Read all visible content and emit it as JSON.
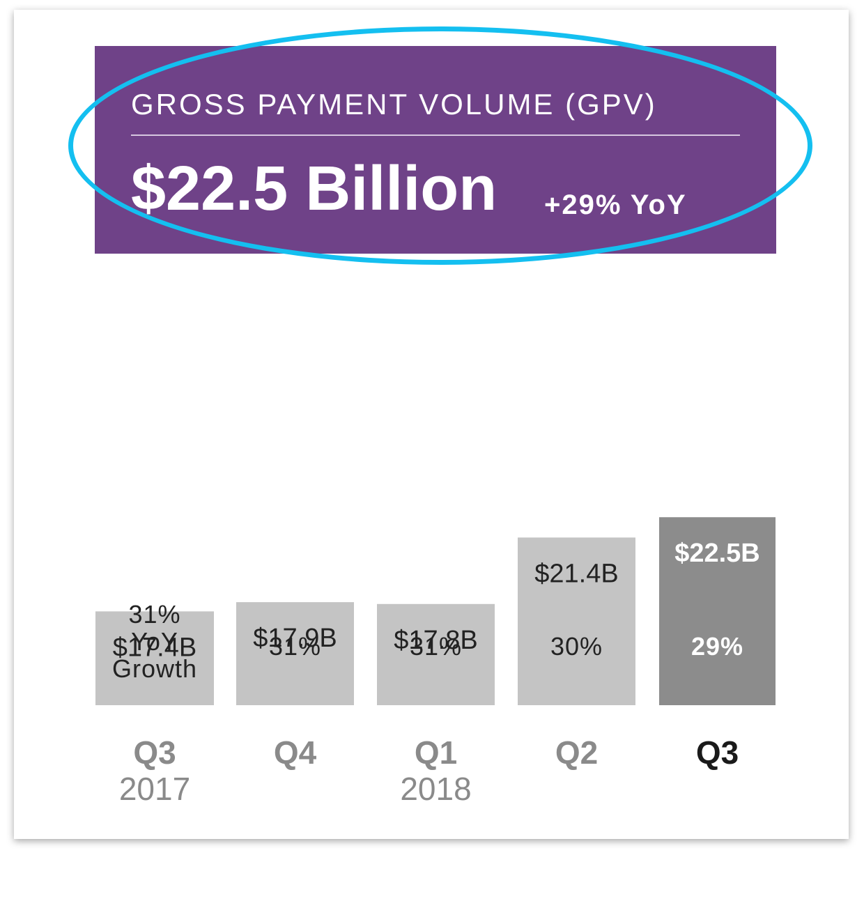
{
  "header": {
    "title": "GROSS PAYMENT VOLUME (GPV)",
    "value": "$22.5 Billion",
    "yoy": "+29% YoY"
  },
  "chart_data": {
    "type": "bar",
    "categories": [
      "Q3 2017",
      "Q4",
      "Q1 2018",
      "Q2",
      "Q3"
    ],
    "tick_labels": [
      {
        "quarter": "Q3",
        "year": "2017"
      },
      {
        "quarter": "Q4",
        "year": ""
      },
      {
        "quarter": "Q1",
        "year": "2018"
      },
      {
        "quarter": "Q2",
        "year": ""
      },
      {
        "quarter": "Q3",
        "year": ""
      }
    ],
    "values": [
      17.4,
      17.9,
      17.8,
      21.4,
      22.5
    ],
    "value_labels": [
      "$17.4B",
      "$17.9B",
      "$17.8B",
      "$21.4B",
      "$22.5B"
    ],
    "growth_labels": [
      [
        "31%",
        "YoY",
        "Growth"
      ],
      [
        "31%"
      ],
      [
        "31%"
      ],
      [
        "30%"
      ],
      [
        "29%"
      ]
    ],
    "highlight_index": 4,
    "colors": {
      "bar": "#c4c4c4",
      "bar_highlight": "#8c8c8c",
      "label_dark": "#222222",
      "label_light": "#ffffff",
      "tick_muted": "#8a8a8a",
      "tick_highlight": "#1a1a1a",
      "banner": "#6f4288",
      "annotation_ellipse": "#14bff0"
    }
  }
}
